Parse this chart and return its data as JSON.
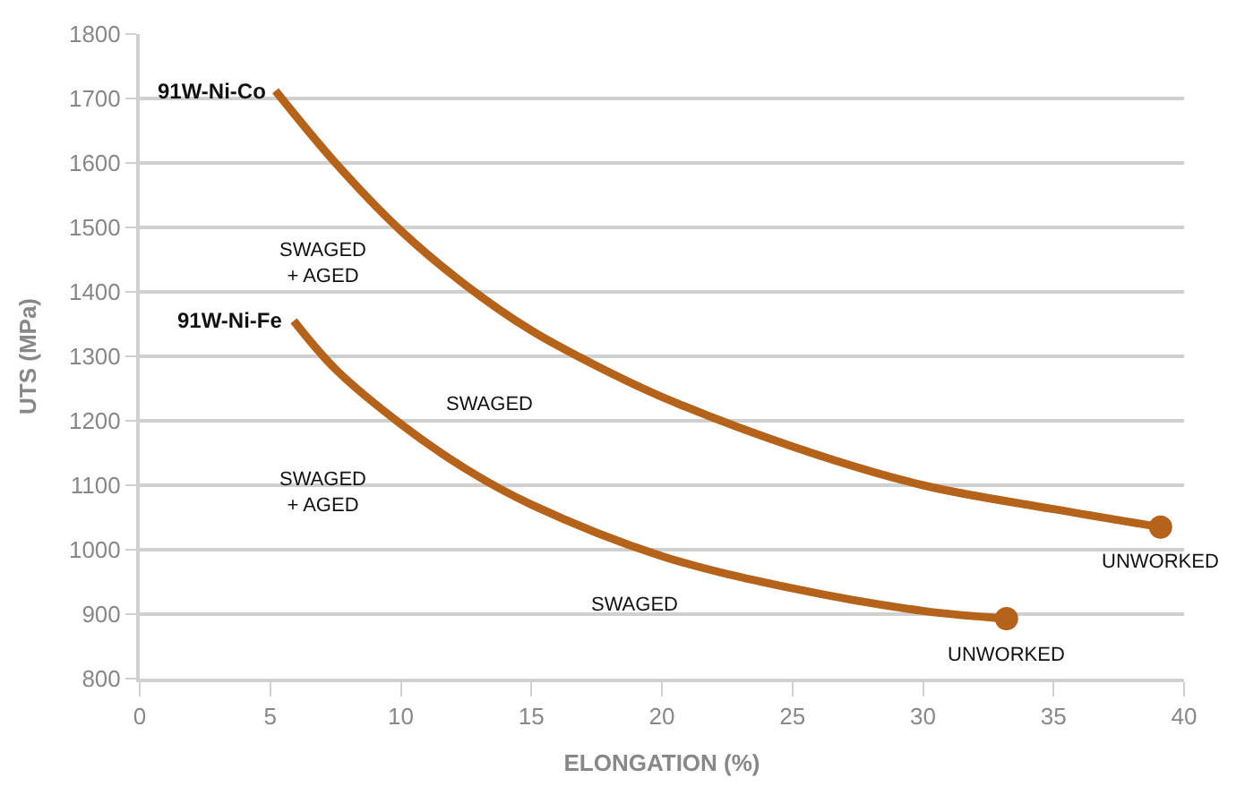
{
  "chart_data": {
    "type": "line",
    "xlabel": "ELONGATION (%)",
    "ylabel": "UTS (MPa)",
    "xlim": [
      0,
      40
    ],
    "xticks": [
      0,
      5,
      10,
      15,
      20,
      25,
      30,
      35,
      40
    ],
    "ylim": [
      800,
      1800
    ],
    "yticks": [
      800,
      900,
      1000,
      1100,
      1200,
      1300,
      1400,
      1500,
      1600,
      1700,
      1800
    ],
    "grid": "y",
    "marker": "none",
    "line_style": "solid",
    "series": [
      {
        "color": "#b5621b",
        "x": [
          5.2,
          7.5,
          10,
          12.5,
          15,
          17.5,
          20,
          25,
          30,
          35,
          39.1
        ],
        "values": [
          1712,
          1600,
          1495,
          1410,
          1340,
          1285,
          1237,
          1160,
          1100,
          1063,
          1035
        ]
      },
      {
        "color": "#b5621b",
        "x": [
          5.9,
          7.5,
          10,
          12.5,
          15,
          20,
          25,
          30,
          33.2
        ],
        "values": [
          1355,
          1280,
          1195,
          1125,
          1070,
          990,
          940,
          905,
          893
        ]
      },
      {
        "type": "scatter",
        "marker": "circle",
        "color": "#b5621b",
        "x": [
          39.1,
          33.2
        ],
        "values": [
          1035,
          893
        ]
      }
    ],
    "annotations": [
      {
        "text": "91W-Ni-Co",
        "x": 5.2,
        "y": 1712
      },
      {
        "text": "91W-Ni-Fe",
        "x": 5.9,
        "y": 1355
      },
      "SWAGED\n+ AGED",
      "SWAGED",
      "SWAGED\n+ AGED",
      "SWAGED",
      {
        "text": "UNWORKED",
        "x": 39.1,
        "y": 1035
      },
      {
        "text": "UNWORKED",
        "x": 33.2,
        "y": 893
      }
    ]
  }
}
